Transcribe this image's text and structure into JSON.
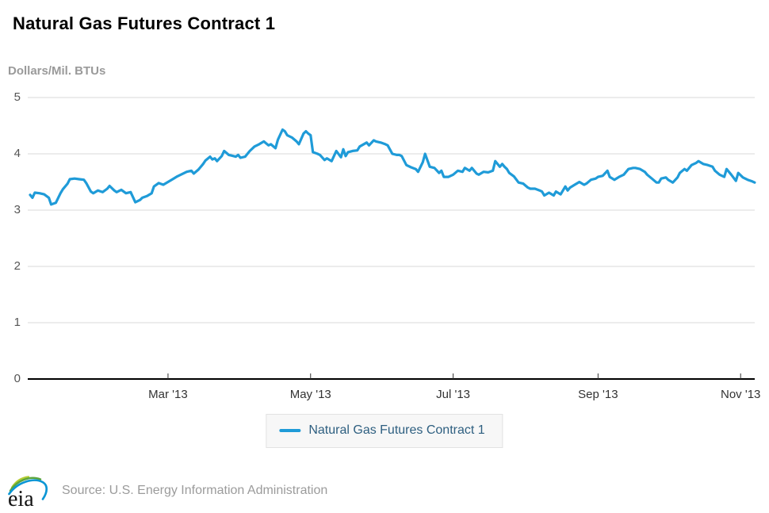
{
  "header": {
    "title": "Natural Gas Futures Contract 1",
    "y_axis_title": "Dollars/Mil. BTUs"
  },
  "legend": {
    "label": "Natural Gas Futures Contract 1"
  },
  "footer": {
    "logo_text": "eia",
    "source": "Source: U.S. Energy Information Administration"
  },
  "colors": {
    "series_blue": "#1f9bd8",
    "legend_text": "#2e5f80",
    "grid_gray": "#d9d9d9",
    "axis_black": "#000000",
    "logo_green": "#5aa53e",
    "logo_lime": "#b5cc34",
    "logo_blue": "#0c96d5"
  },
  "chart_data": {
    "type": "line",
    "title": "Natural Gas Futures Contract 1",
    "ylabel": "Dollars/Mil. BTUs",
    "xlabel": "",
    "ylim": [
      0,
      5
    ],
    "yticks": [
      0,
      1,
      2,
      3,
      4,
      5
    ],
    "grid": true,
    "legend_position": "bottom",
    "x_unit": "days since Jan 1 2013",
    "xlim_days": [
      0,
      310
    ],
    "xticks": [
      {
        "label": "Mar '13",
        "day": 59
      },
      {
        "label": "May '13",
        "day": 120
      },
      {
        "label": "Jul '13",
        "day": 181
      },
      {
        "label": "Sep '13",
        "day": 243
      },
      {
        "label": "Nov '13",
        "day": 304
      }
    ],
    "series": [
      {
        "name": "Natural Gas Futures Contract 1",
        "color": "#1f9bd8",
        "points": [
          [
            0,
            3.27
          ],
          [
            1,
            3.22
          ],
          [
            2,
            3.31
          ],
          [
            4,
            3.3
          ],
          [
            6,
            3.28
          ],
          [
            8,
            3.22
          ],
          [
            9,
            3.1
          ],
          [
            11,
            3.13
          ],
          [
            13,
            3.3
          ],
          [
            14,
            3.37
          ],
          [
            16,
            3.47
          ],
          [
            17,
            3.55
          ],
          [
            19,
            3.56
          ],
          [
            21,
            3.55
          ],
          [
            23,
            3.54
          ],
          [
            24,
            3.48
          ],
          [
            26,
            3.33
          ],
          [
            27,
            3.3
          ],
          [
            29,
            3.35
          ],
          [
            31,
            3.32
          ],
          [
            33,
            3.38
          ],
          [
            34,
            3.43
          ],
          [
            36,
            3.35
          ],
          [
            37,
            3.32
          ],
          [
            39,
            3.36
          ],
          [
            41,
            3.3
          ],
          [
            43,
            3.32
          ],
          [
            45,
            3.14
          ],
          [
            47,
            3.18
          ],
          [
            48,
            3.22
          ],
          [
            50,
            3.25
          ],
          [
            52,
            3.3
          ],
          [
            53,
            3.42
          ],
          [
            55,
            3.48
          ],
          [
            57,
            3.45
          ],
          [
            59,
            3.5
          ],
          [
            61,
            3.55
          ],
          [
            63,
            3.6
          ],
          [
            65,
            3.64
          ],
          [
            67,
            3.68
          ],
          [
            69,
            3.7
          ],
          [
            70,
            3.65
          ],
          [
            72,
            3.72
          ],
          [
            74,
            3.82
          ],
          [
            75,
            3.88
          ],
          [
            77,
            3.95
          ],
          [
            78,
            3.9
          ],
          [
            79,
            3.92
          ],
          [
            80,
            3.87
          ],
          [
            82,
            3.96
          ],
          [
            83,
            4.05
          ],
          [
            85,
            3.98
          ],
          [
            86,
            3.97
          ],
          [
            88,
            3.95
          ],
          [
            89,
            3.98
          ],
          [
            90,
            3.93
          ],
          [
            92,
            3.95
          ],
          [
            94,
            4.05
          ],
          [
            96,
            4.13
          ],
          [
            98,
            4.17
          ],
          [
            100,
            4.22
          ],
          [
            102,
            4.15
          ],
          [
            103,
            4.17
          ],
          [
            105,
            4.1
          ],
          [
            106,
            4.25
          ],
          [
            108,
            4.43
          ],
          [
            109,
            4.4
          ],
          [
            110,
            4.33
          ],
          [
            112,
            4.29
          ],
          [
            114,
            4.22
          ],
          [
            115,
            4.17
          ],
          [
            117,
            4.36
          ],
          [
            118,
            4.4
          ],
          [
            119,
            4.36
          ],
          [
            120,
            4.33
          ],
          [
            121,
            4.03
          ],
          [
            123,
            4.0
          ],
          [
            124,
            3.98
          ],
          [
            126,
            3.89
          ],
          [
            127,
            3.92
          ],
          [
            129,
            3.87
          ],
          [
            131,
            4.05
          ],
          [
            133,
            3.94
          ],
          [
            134,
            4.08
          ],
          [
            135,
            3.96
          ],
          [
            136,
            4.03
          ],
          [
            138,
            4.05
          ],
          [
            140,
            4.06
          ],
          [
            141,
            4.13
          ],
          [
            144,
            4.2
          ],
          [
            145,
            4.15
          ],
          [
            147,
            4.24
          ],
          [
            148,
            4.22
          ],
          [
            150,
            4.2
          ],
          [
            152,
            4.17
          ],
          [
            153,
            4.15
          ],
          [
            155,
            4.0
          ],
          [
            157,
            3.98
          ],
          [
            158,
            3.98
          ],
          [
            159,
            3.96
          ],
          [
            161,
            3.8
          ],
          [
            163,
            3.76
          ],
          [
            165,
            3.73
          ],
          [
            166,
            3.68
          ],
          [
            168,
            3.85
          ],
          [
            169,
            4.0
          ],
          [
            171,
            3.77
          ],
          [
            173,
            3.75
          ],
          [
            175,
            3.66
          ],
          [
            176,
            3.7
          ],
          [
            177,
            3.59
          ],
          [
            179,
            3.59
          ],
          [
            181,
            3.63
          ],
          [
            183,
            3.7
          ],
          [
            185,
            3.68
          ],
          [
            186,
            3.75
          ],
          [
            188,
            3.7
          ],
          [
            189,
            3.75
          ],
          [
            191,
            3.65
          ],
          [
            192,
            3.63
          ],
          [
            194,
            3.68
          ],
          [
            196,
            3.67
          ],
          [
            198,
            3.7
          ],
          [
            199,
            3.87
          ],
          [
            200,
            3.82
          ],
          [
            201,
            3.77
          ],
          [
            202,
            3.82
          ],
          [
            203,
            3.77
          ],
          [
            204,
            3.73
          ],
          [
            205,
            3.66
          ],
          [
            207,
            3.6
          ],
          [
            209,
            3.49
          ],
          [
            211,
            3.47
          ],
          [
            213,
            3.4
          ],
          [
            214,
            3.38
          ],
          [
            216,
            3.38
          ],
          [
            218,
            3.35
          ],
          [
            219,
            3.33
          ],
          [
            220,
            3.26
          ],
          [
            222,
            3.31
          ],
          [
            224,
            3.26
          ],
          [
            225,
            3.33
          ],
          [
            227,
            3.28
          ],
          [
            229,
            3.42
          ],
          [
            230,
            3.35
          ],
          [
            231,
            3.4
          ],
          [
            233,
            3.45
          ],
          [
            235,
            3.5
          ],
          [
            237,
            3.45
          ],
          [
            238,
            3.47
          ],
          [
            240,
            3.54
          ],
          [
            242,
            3.56
          ],
          [
            243,
            3.59
          ],
          [
            245,
            3.61
          ],
          [
            247,
            3.7
          ],
          [
            248,
            3.59
          ],
          [
            250,
            3.54
          ],
          [
            252,
            3.59
          ],
          [
            254,
            3.63
          ],
          [
            256,
            3.73
          ],
          [
            258,
            3.75
          ],
          [
            259,
            3.75
          ],
          [
            261,
            3.73
          ],
          [
            263,
            3.68
          ],
          [
            264,
            3.63
          ],
          [
            266,
            3.56
          ],
          [
            268,
            3.49
          ],
          [
            269,
            3.49
          ],
          [
            270,
            3.56
          ],
          [
            272,
            3.58
          ],
          [
            273,
            3.54
          ],
          [
            275,
            3.49
          ],
          [
            277,
            3.58
          ],
          [
            278,
            3.66
          ],
          [
            280,
            3.73
          ],
          [
            281,
            3.7
          ],
          [
            283,
            3.8
          ],
          [
            285,
            3.84
          ],
          [
            286,
            3.87
          ],
          [
            288,
            3.82
          ],
          [
            290,
            3.8
          ],
          [
            292,
            3.77
          ],
          [
            293,
            3.7
          ],
          [
            295,
            3.63
          ],
          [
            297,
            3.59
          ],
          [
            298,
            3.73
          ],
          [
            300,
            3.63
          ],
          [
            302,
            3.52
          ],
          [
            303,
            3.66
          ],
          [
            305,
            3.58
          ],
          [
            307,
            3.54
          ],
          [
            309,
            3.51
          ],
          [
            310,
            3.49
          ]
        ]
      }
    ]
  }
}
